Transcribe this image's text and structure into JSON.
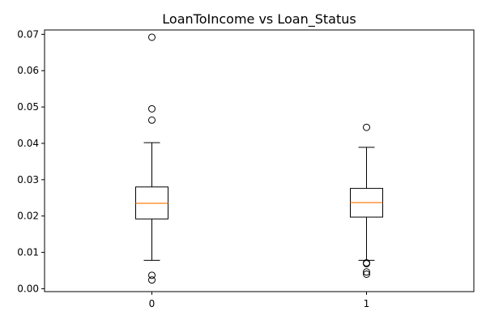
{
  "chart_data": {
    "type": "box",
    "title": "LoanToIncome vs Loan_Status",
    "xlabel": "",
    "ylabel": "",
    "categories": [
      "0",
      "1"
    ],
    "ylim": [
      -0.0008,
      0.0712
    ],
    "yticks": [
      0.0,
      0.01,
      0.02,
      0.03,
      0.04,
      0.05,
      0.06,
      0.07
    ],
    "ytick_labels": [
      "0.00",
      "0.01",
      "0.02",
      "0.03",
      "0.04",
      "0.05",
      "0.06",
      "0.07"
    ],
    "grid": false,
    "colors": {
      "box": "#000000",
      "median": "#ff7f0e",
      "background": "#ffffff"
    },
    "boxes": [
      {
        "category": "0",
        "whisker_low": 0.0078,
        "q1": 0.0192,
        "median": 0.0235,
        "q3": 0.028,
        "whisker_high": 0.0402,
        "outliers": [
          0.0692,
          0.0495,
          0.0464,
          0.0037,
          0.0024
        ]
      },
      {
        "category": "1",
        "whisker_low": 0.0078,
        "q1": 0.0197,
        "median": 0.0237,
        "q3": 0.0276,
        "whisker_high": 0.0389,
        "outliers": [
          0.0444,
          0.0071,
          0.0069,
          0.0046,
          0.004
        ]
      }
    ]
  }
}
